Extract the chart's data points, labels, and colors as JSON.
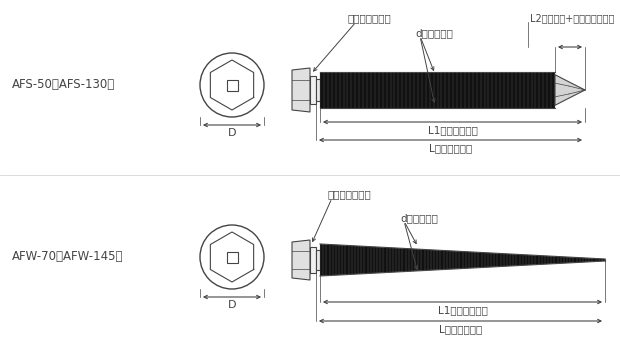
{
  "bg_color": "#ffffff",
  "line_color": "#444444",
  "screw_fill": "#111111",
  "label1": "AFS-50～AFS-130用",
  "label2": "AFW-70～AFW-145用",
  "seal_label": "シールマスター",
  "d_label": "d（ネジ径）",
  "L2_label": "L2（ドリル+不完全ネジ部）",
  "L1_label": "L1（ネジ長さ）",
  "L_label": "L（首下長さ）",
  "D_label": "D"
}
